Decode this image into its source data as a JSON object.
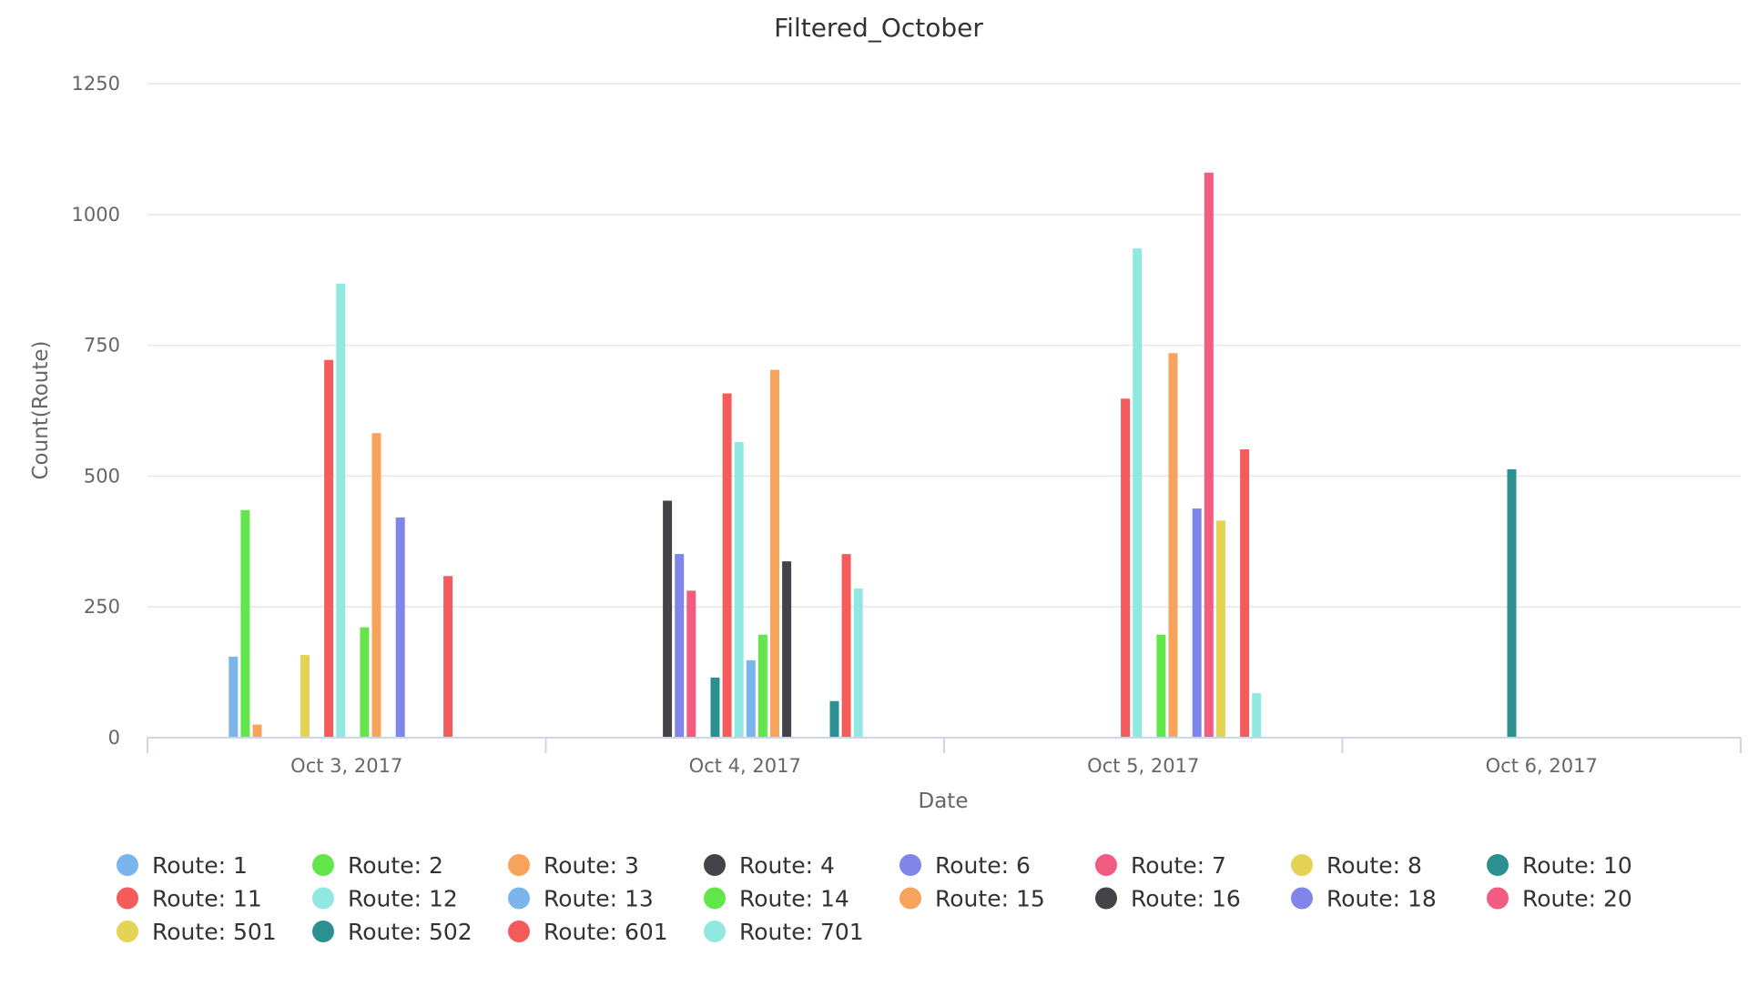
{
  "chart_data": {
    "type": "bar",
    "title": "Filtered_October",
    "xlabel": "Date",
    "ylabel": "Count(Route)",
    "ylim": [
      0,
      1250
    ],
    "yticks": [
      0,
      250,
      500,
      750,
      1000,
      1250
    ],
    "grid": true,
    "legend_position": "bottom",
    "categories": [
      "Oct 3, 2017",
      "Oct 4, 2017",
      "Oct 5, 2017",
      "Oct 6, 2017"
    ],
    "series": [
      {
        "name": "Route: 1",
        "color": "#7cb5ec",
        "values": [
          155,
          null,
          null,
          null
        ]
      },
      {
        "name": "Route: 2",
        "color": "#63e64b",
        "values": [
          435,
          null,
          null,
          null
        ]
      },
      {
        "name": "Route: 3",
        "color": "#f7a35c",
        "values": [
          25,
          null,
          null,
          null
        ]
      },
      {
        "name": "Route: 4",
        "color": "#434348",
        "values": [
          null,
          453,
          null,
          null
        ]
      },
      {
        "name": "Route: 6",
        "color": "#8085e9",
        "values": [
          null,
          351,
          null,
          null
        ]
      },
      {
        "name": "Route: 7",
        "color": "#f15c80",
        "values": [
          null,
          281,
          null,
          null
        ]
      },
      {
        "name": "Route: 8",
        "color": "#e4d354",
        "values": [
          158,
          null,
          null,
          null
        ]
      },
      {
        "name": "Route: 10",
        "color": "#2b908f",
        "values": [
          null,
          115,
          null,
          513
        ]
      },
      {
        "name": "Route: 11",
        "color": "#f45b5b",
        "values": [
          722,
          658,
          648,
          null
        ]
      },
      {
        "name": "Route: 12",
        "color": "#91e8e1",
        "values": [
          868,
          565,
          935,
          null
        ]
      },
      {
        "name": "Route: 13",
        "color": "#7cb5ec",
        "values": [
          null,
          148,
          null,
          null
        ]
      },
      {
        "name": "Route: 14",
        "color": "#63e64b",
        "values": [
          211,
          197,
          197,
          null
        ]
      },
      {
        "name": "Route: 15",
        "color": "#f7a35c",
        "values": [
          582,
          703,
          735,
          null
        ]
      },
      {
        "name": "Route: 16",
        "color": "#434348",
        "values": [
          null,
          337,
          null,
          null
        ]
      },
      {
        "name": "Route: 18",
        "color": "#8085e9",
        "values": [
          421,
          null,
          438,
          null
        ]
      },
      {
        "name": "Route: 20",
        "color": "#f15c80",
        "values": [
          null,
          null,
          1080,
          null
        ]
      },
      {
        "name": "Route: 501",
        "color": "#e4d354",
        "values": [
          null,
          null,
          415,
          null
        ]
      },
      {
        "name": "Route: 502",
        "color": "#2b908f",
        "values": [
          null,
          70,
          null,
          null
        ]
      },
      {
        "name": "Route: 601",
        "color": "#f45b5b",
        "values": [
          309,
          351,
          551,
          null
        ]
      },
      {
        "name": "Route: 701",
        "color": "#91e8e1",
        "values": [
          null,
          285,
          85,
          null
        ]
      }
    ]
  }
}
